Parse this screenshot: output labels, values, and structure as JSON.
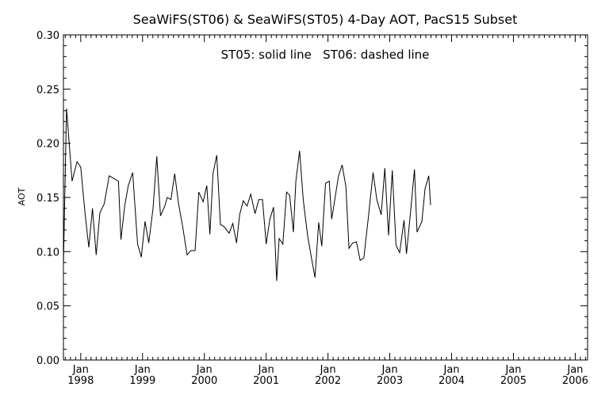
{
  "chart_data": {
    "type": "line",
    "title": "SeaWiFS(ST06) & SeaWiFS(ST05) 4-Day AOT, PacS15 Subset",
    "annotation": "ST05: solid line   ST06: dashed line",
    "xlabel": "",
    "ylabel": "AOT",
    "ylim": [
      0.0,
      0.3
    ],
    "xlim": [
      1997.72,
      2006.2
    ],
    "grid": false,
    "legend": "none",
    "y_ticks": [
      "0.00",
      "0.05",
      "0.10",
      "0.15",
      "0.20",
      "0.25",
      "0.30"
    ],
    "x_ticks": [
      {
        "month": "Jan",
        "year": "1998"
      },
      {
        "month": "Jan",
        "year": "1999"
      },
      {
        "month": "Jan",
        "year": "2000"
      },
      {
        "month": "Jan",
        "year": "2001"
      },
      {
        "month": "Jan",
        "year": "2002"
      },
      {
        "month": "Jan",
        "year": "2003"
      },
      {
        "month": "Jan",
        "year": "2004"
      },
      {
        "month": "Jan",
        "year": "2005"
      },
      {
        "month": "Jan",
        "year": "2006"
      }
    ],
    "x_unit": "decimal year",
    "series": [
      {
        "name": "ST05",
        "style": "solid",
        "color": "#000000",
        "points": [
          [
            1997.72,
            0.088
          ],
          [
            1997.77,
            0.232
          ],
          [
            1997.86,
            0.165
          ],
          [
            1997.94,
            0.183
          ],
          [
            1998.0,
            0.178
          ],
          [
            1998.07,
            0.135
          ],
          [
            1998.13,
            0.104
          ],
          [
            1998.19,
            0.14
          ],
          [
            1998.25,
            0.097
          ],
          [
            1998.31,
            0.136
          ],
          [
            1998.38,
            0.144
          ],
          [
            1998.46,
            0.17
          ],
          [
            1998.55,
            0.167
          ],
          [
            1998.61,
            0.165
          ],
          [
            1998.65,
            0.111
          ],
          [
            1998.71,
            0.142
          ],
          [
            1998.77,
            0.161
          ],
          [
            1998.84,
            0.173
          ],
          [
            1998.92,
            0.107
          ],
          [
            1998.98,
            0.095
          ],
          [
            1999.04,
            0.128
          ],
          [
            1999.1,
            0.108
          ],
          [
            1999.17,
            0.14
          ],
          [
            1999.23,
            0.188
          ],
          [
            1999.29,
            0.133
          ],
          [
            1999.36,
            0.142
          ],
          [
            1999.4,
            0.15
          ],
          [
            1999.46,
            0.148
          ],
          [
            1999.52,
            0.172
          ],
          [
            1999.58,
            0.145
          ],
          [
            1999.65,
            0.123
          ],
          [
            1999.72,
            0.097
          ],
          [
            1999.78,
            0.101
          ],
          [
            1999.85,
            0.101
          ],
          [
            1999.91,
            0.155
          ],
          [
            1999.98,
            0.146
          ],
          [
            2000.04,
            0.161
          ],
          [
            2000.09,
            0.116
          ],
          [
            2000.14,
            0.172
          ],
          [
            2000.2,
            0.189
          ],
          [
            2000.26,
            0.125
          ],
          [
            2000.32,
            0.123
          ],
          [
            2000.4,
            0.117
          ],
          [
            2000.46,
            0.126
          ],
          [
            2000.52,
            0.108
          ],
          [
            2000.57,
            0.134
          ],
          [
            2000.63,
            0.147
          ],
          [
            2000.69,
            0.142
          ],
          [
            2000.75,
            0.153
          ],
          [
            2000.82,
            0.135
          ],
          [
            2000.88,
            0.148
          ],
          [
            2000.94,
            0.148
          ],
          [
            2001.0,
            0.107
          ],
          [
            2001.06,
            0.13
          ],
          [
            2001.12,
            0.141
          ],
          [
            2001.17,
            0.073
          ],
          [
            2001.21,
            0.112
          ],
          [
            2001.27,
            0.107
          ],
          [
            2001.33,
            0.155
          ],
          [
            2001.38,
            0.152
          ],
          [
            2001.44,
            0.118
          ],
          [
            2001.48,
            0.165
          ],
          [
            2001.54,
            0.193
          ],
          [
            2001.6,
            0.148
          ],
          [
            2001.67,
            0.115
          ],
          [
            2001.73,
            0.095
          ],
          [
            2001.79,
            0.076
          ],
          [
            2001.85,
            0.127
          ],
          [
            2001.9,
            0.105
          ],
          [
            2001.96,
            0.163
          ],
          [
            2002.02,
            0.165
          ],
          [
            2002.06,
            0.13
          ],
          [
            2002.11,
            0.148
          ],
          [
            2002.17,
            0.17
          ],
          [
            2002.23,
            0.18
          ],
          [
            2002.29,
            0.16
          ],
          [
            2002.34,
            0.103
          ],
          [
            2002.4,
            0.108
          ],
          [
            2002.46,
            0.109
          ],
          [
            2002.52,
            0.092
          ],
          [
            2002.58,
            0.094
          ],
          [
            2002.65,
            0.13
          ],
          [
            2002.73,
            0.173
          ],
          [
            2002.79,
            0.148
          ],
          [
            2002.86,
            0.134
          ],
          [
            2002.92,
            0.177
          ],
          [
            2002.98,
            0.115
          ],
          [
            2003.04,
            0.175
          ],
          [
            2003.1,
            0.106
          ],
          [
            2003.16,
            0.099
          ],
          [
            2003.23,
            0.129
          ],
          [
            2003.27,
            0.098
          ],
          [
            2003.33,
            0.133
          ],
          [
            2003.4,
            0.176
          ],
          [
            2003.44,
            0.118
          ],
          [
            2003.52,
            0.128
          ],
          [
            2003.57,
            0.158
          ],
          [
            2003.63,
            0.17
          ],
          [
            2003.66,
            0.143
          ]
        ]
      }
    ]
  }
}
